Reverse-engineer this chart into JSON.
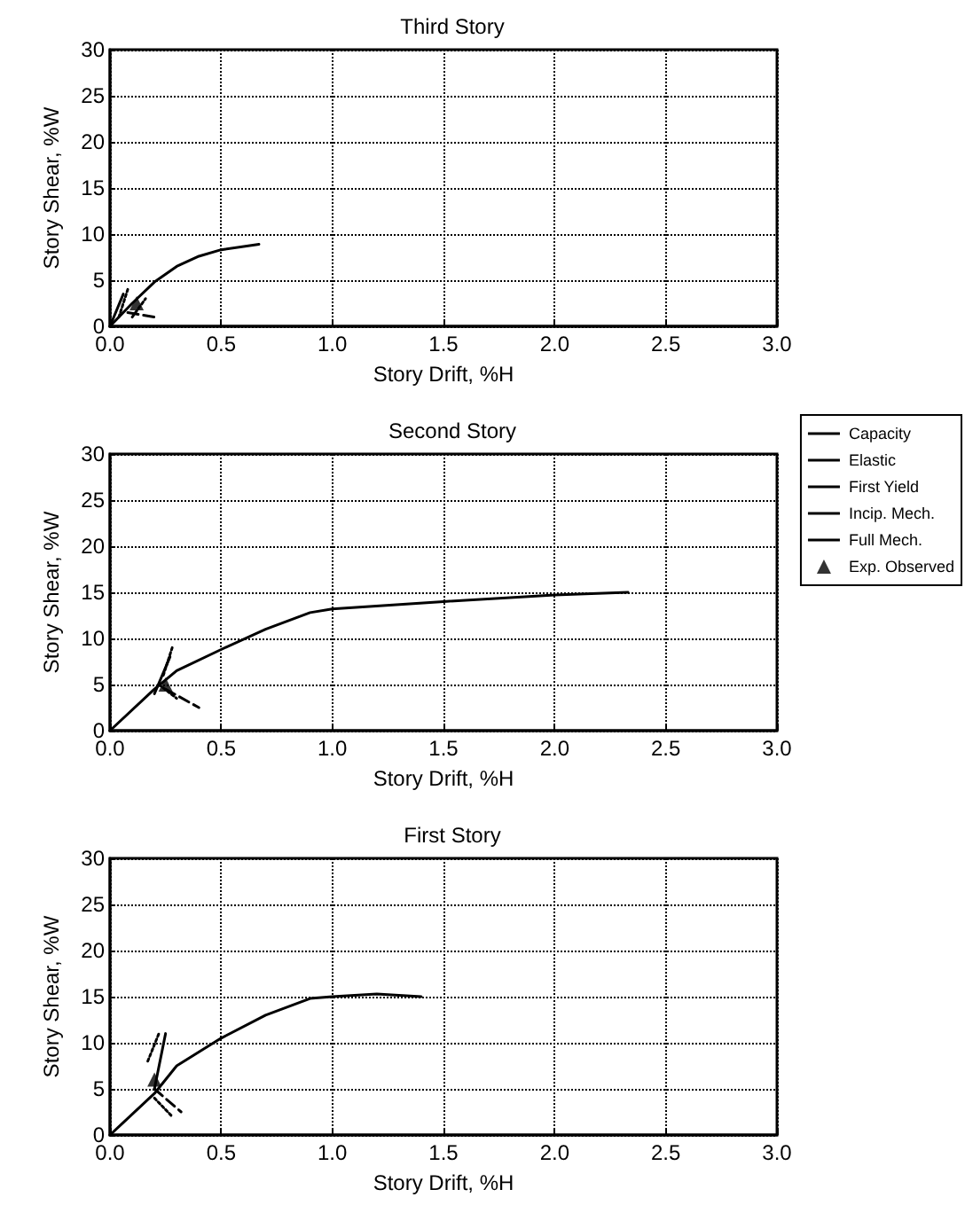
{
  "chart_data": [
    {
      "type": "line",
      "title": "Third Story",
      "xlabel": "Story Drift, %H",
      "ylabel": "Story Shear, %W",
      "xlim": [
        0,
        3
      ],
      "ylim": [
        0,
        30
      ],
      "xticks": [
        {
          "value": 0,
          "label": "0.0"
        },
        {
          "value": 0.5,
          "label": "0.5"
        },
        {
          "value": 1,
          "label": "1.0"
        },
        {
          "value": 1.5,
          "label": "1.5"
        },
        {
          "value": 2,
          "label": "2.0"
        },
        {
          "value": 2.5,
          "label": "2.5"
        },
        {
          "value": 3,
          "label": "3.0"
        }
      ],
      "yticks": [
        0,
        5,
        10,
        15,
        20,
        25,
        30
      ],
      "grid": true,
      "legend": false,
      "series": [
        {
          "color": "#000000",
          "line_style": "solid",
          "marker": "none",
          "x": [
            0,
            0.1,
            0.2,
            0.3,
            0.4,
            0.5,
            0.67
          ],
          "values": [
            0,
            2.5,
            4.8,
            6.5,
            7.6,
            8.3,
            8.9
          ]
        },
        {
          "color": "#000000",
          "line_style": "solid",
          "marker": "none",
          "x": [
            0,
            0.06
          ],
          "values": [
            0,
            3.5
          ]
        },
        {
          "color": "#000000",
          "line_style": "dotted",
          "marker": "none",
          "x": [
            0.04,
            0.08
          ],
          "values": [
            1,
            4
          ]
        },
        {
          "color": "#000000",
          "line_style": "dashed",
          "marker": "none",
          "x": [
            0.08,
            0.2
          ],
          "values": [
            1.5,
            1
          ]
        },
        {
          "color": "#000000",
          "line_style": "dotted",
          "marker": "none",
          "x": [
            0.1,
            0.16
          ],
          "values": [
            1,
            3
          ]
        },
        {
          "type": "scatter",
          "color": "#000000",
          "marker": "triangle",
          "x": [
            0.12
          ],
          "values": [
            2.5
          ]
        }
      ]
    },
    {
      "type": "line",
      "title": "Second Story",
      "xlabel": "Story Drift, %H",
      "ylabel": "Story Shear, %W",
      "xlim": [
        0,
        3
      ],
      "ylim": [
        0,
        30
      ],
      "xticks": [
        {
          "value": 0,
          "label": "0.0"
        },
        {
          "value": 0.5,
          "label": "0.5"
        },
        {
          "value": 1,
          "label": "1.0"
        },
        {
          "value": 1.5,
          "label": "1.5"
        },
        {
          "value": 2,
          "label": "2.0"
        },
        {
          "value": 2.5,
          "label": "2.5"
        },
        {
          "value": 3,
          "label": "3.0"
        }
      ],
      "yticks": [
        0,
        5,
        10,
        15,
        20,
        25,
        30
      ],
      "grid": true,
      "legend": "right",
      "series": [
        {
          "name": "Capacity",
          "color": "#000000",
          "line_style": "solid",
          "marker": "none",
          "x": [
            0,
            0.2,
            0.3,
            0.5,
            0.7,
            0.9,
            1,
            1.5,
            2,
            2.33
          ],
          "values": [
            0,
            4.5,
            6.5,
            8.8,
            11,
            12.8,
            13.2,
            14,
            14.7,
            15
          ]
        },
        {
          "name": "Elastic",
          "color": "#000000",
          "line_style": "solid",
          "marker": "none",
          "x": [
            0.2,
            0.27
          ],
          "values": [
            4,
            8
          ]
        },
        {
          "name": "First Yield",
          "color": "#000000",
          "line_style": "dotted",
          "marker": "none",
          "x": [
            0.22,
            0.3
          ],
          "values": [
            5,
            3.5
          ]
        },
        {
          "name": "Incip. Mech.",
          "color": "#000000",
          "line_style": "dashed",
          "marker": "none",
          "x": [
            0.25,
            0.4
          ],
          "values": [
            4.5,
            2.5
          ]
        },
        {
          "name": "Full Mech.",
          "color": "#000000",
          "line_style": "dotted",
          "marker": "none",
          "x": [
            0.24,
            0.28
          ],
          "values": [
            6,
            9
          ]
        },
        {
          "type": "scatter",
          "name": "Exp. Observed",
          "color": "#000000",
          "marker": "triangle",
          "x": [
            0.25
          ],
          "values": [
            5
          ]
        }
      ]
    },
    {
      "type": "line",
      "title": "First Story",
      "xlabel": "Story Drift, %H",
      "ylabel": "Story Shear, %W",
      "xlim": [
        0,
        3
      ],
      "ylim": [
        0,
        30
      ],
      "xticks": [
        {
          "value": 0,
          "label": "0.0"
        },
        {
          "value": 0.5,
          "label": "0.5"
        },
        {
          "value": 1,
          "label": "1.0"
        },
        {
          "value": 1.5,
          "label": "1.5"
        },
        {
          "value": 2,
          "label": "2.0"
        },
        {
          "value": 2.5,
          "label": "2.5"
        },
        {
          "value": 3,
          "label": "3.0"
        }
      ],
      "yticks": [
        0,
        5,
        10,
        15,
        20,
        25,
        30
      ],
      "grid": true,
      "legend": false,
      "series": [
        {
          "color": "#000000",
          "line_style": "solid",
          "marker": "none",
          "x": [
            0,
            0.2,
            0.3,
            0.5,
            0.7,
            0.9,
            1,
            1.2,
            1.4
          ],
          "values": [
            0,
            4.5,
            7.5,
            10.5,
            13,
            14.8,
            15,
            15.3,
            15
          ]
        },
        {
          "color": "#000000",
          "line_style": "solid",
          "marker": "none",
          "x": [
            0.2,
            0.25
          ],
          "values": [
            5,
            11
          ]
        },
        {
          "color": "#000000",
          "line_style": "dotted",
          "marker": "none",
          "x": [
            0.17,
            0.22
          ],
          "values": [
            8,
            11
          ]
        },
        {
          "color": "#000000",
          "line_style": "dashed",
          "marker": "none",
          "x": [
            0.2,
            0.32
          ],
          "values": [
            5,
            2.5
          ]
        },
        {
          "color": "#000000",
          "line_style": "dotted",
          "marker": "none",
          "x": [
            0.2,
            0.28
          ],
          "values": [
            4,
            2
          ]
        },
        {
          "type": "scatter",
          "color": "#000000",
          "marker": "triangle",
          "x": [
            0.2
          ],
          "values": [
            6
          ]
        }
      ]
    }
  ]
}
